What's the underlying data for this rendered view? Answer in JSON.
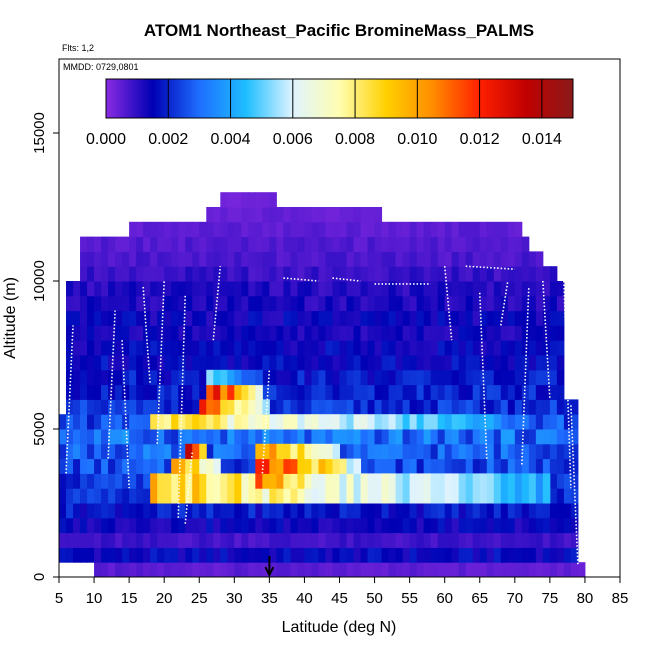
{
  "chart_data": {
    "type": "heatmap",
    "title": "ATOM1 Northeast_Pacific BromineMass_PALMS",
    "flights_label": "Flts: 1,2",
    "dates_label": "MMDD: 0729,0801",
    "xlabel": "Latitude (deg N)",
    "ylabel": "Altitude (m)",
    "xlim": [
      5,
      85
    ],
    "ylim": [
      0,
      17500
    ],
    "x_ticks": [
      "5",
      "10",
      "15",
      "20",
      "25",
      "30",
      "35",
      "40",
      "45",
      "50",
      "55",
      "60",
      "65",
      "70",
      "75",
      "80",
      "85"
    ],
    "y_ticks": [
      "0",
      "5000",
      "10000",
      "15000"
    ],
    "colorbar": {
      "min": 0.0,
      "max": 0.015,
      "tick_values": [
        0.0,
        0.002,
        0.004,
        0.006,
        0.008,
        0.01,
        0.012,
        0.014
      ],
      "tick_labels": [
        "0.000",
        "0.002",
        "0.004",
        "0.006",
        "0.008",
        "0.010",
        "0.012",
        "0.014"
      ],
      "colors": [
        "#8a2be2",
        "#0000b4",
        "#1e6eff",
        "#1ebeff",
        "#dff3ff",
        "#fffeb0",
        "#ffd000",
        "#ff8c00",
        "#ff2000",
        "#c00000",
        "#8b1a1a"
      ]
    },
    "marker_latitude": 35,
    "colors": {
      "frame": "#000000",
      "track": "#ffffff",
      "marker": "#000000"
    },
    "altitude_bands": [
      {
        "alt": [
          0,
          500
        ],
        "lat": [
          10,
          80
        ],
        "value": 0.0005
      },
      {
        "alt": [
          500,
          1000
        ],
        "lat": [
          5,
          79
        ],
        "value": 0.0015
      },
      {
        "alt": [
          1000,
          1500
        ],
        "lat": [
          5,
          79
        ],
        "value": 0.0008
      },
      {
        "alt": [
          1500,
          2000
        ],
        "lat": [
          5,
          79
        ],
        "value": 0.0014
      },
      {
        "alt": [
          2000,
          2500
        ],
        "lat": [
          5,
          79
        ],
        "value": 0.0018
      },
      {
        "alt": [
          2500,
          3000
        ],
        "lat": [
          5,
          79
        ],
        "value": 0.002
      },
      {
        "alt": [
          3000,
          3500
        ],
        "lat": [
          5,
          79
        ],
        "value": 0.0022
      },
      {
        "alt": [
          3500,
          4000
        ],
        "lat": [
          5,
          79
        ],
        "value": 0.0025
      },
      {
        "alt": [
          4000,
          4500
        ],
        "lat": [
          5,
          79
        ],
        "value": 0.0028
      },
      {
        "alt": [
          4500,
          5000
        ],
        "lat": [
          5,
          79
        ],
        "value": 0.003
      },
      {
        "alt": [
          5000,
          5500
        ],
        "lat": [
          5,
          79
        ],
        "value": 0.0025
      },
      {
        "alt": [
          5500,
          6000
        ],
        "lat": [
          6,
          79
        ],
        "value": 0.0021
      },
      {
        "alt": [
          6000,
          6500
        ],
        "lat": [
          6,
          77
        ],
        "value": 0.0019
      },
      {
        "alt": [
          6500,
          7000
        ],
        "lat": [
          6,
          77
        ],
        "value": 0.0018
      },
      {
        "alt": [
          7000,
          7500
        ],
        "lat": [
          6,
          77
        ],
        "value": 0.0016
      },
      {
        "alt": [
          7500,
          8000
        ],
        "lat": [
          6,
          77
        ],
        "value": 0.0015
      },
      {
        "alt": [
          8000,
          8500
        ],
        "lat": [
          6,
          77
        ],
        "value": 0.0013
      },
      {
        "alt": [
          8500,
          9000
        ],
        "lat": [
          6,
          77
        ],
        "value": 0.0014
      },
      {
        "alt": [
          9000,
          9500
        ],
        "lat": [
          6,
          77
        ],
        "value": 0.0012
      },
      {
        "alt": [
          9500,
          10000
        ],
        "lat": [
          6,
          77
        ],
        "value": 0.0011
      },
      {
        "alt": [
          10000,
          10500
        ],
        "lat": [
          8,
          76
        ],
        "value": 0.0009
      },
      {
        "alt": [
          10500,
          11000
        ],
        "lat": [
          8,
          74
        ],
        "value": 0.0007
      },
      {
        "alt": [
          11000,
          11500
        ],
        "lat": [
          8,
          72
        ],
        "value": 0.0006
      },
      {
        "alt": [
          11500,
          12000
        ],
        "lat": [
          15,
          71
        ],
        "value": 0.0005
      },
      {
        "alt": [
          12000,
          12500
        ],
        "lat": [
          26,
          51
        ],
        "value": 0.0004
      },
      {
        "alt": [
          12500,
          13000
        ],
        "lat": [
          28,
          36
        ],
        "value": 0.0003
      }
    ],
    "high_cells": [
      {
        "alt": [
          2500,
          3500
        ],
        "lat": [
          18,
          75
        ],
        "value": 0.009
      },
      {
        "alt": [
          3000,
          3500
        ],
        "lat": [
          33,
          42
        ],
        "value": 0.012
      },
      {
        "alt": [
          3500,
          4000
        ],
        "lat": [
          21,
          28
        ],
        "value": 0.011
      },
      {
        "alt": [
          3500,
          4000
        ],
        "lat": [
          33,
          48
        ],
        "value": 0.0125
      },
      {
        "alt": [
          4000,
          4500
        ],
        "lat": [
          23,
          26
        ],
        "value": 0.0145
      },
      {
        "alt": [
          4000,
          4500
        ],
        "lat": [
          33,
          45
        ],
        "value": 0.011
      },
      {
        "alt": [
          5000,
          5500
        ],
        "lat": [
          18,
          68
        ],
        "value": 0.0085
      },
      {
        "alt": [
          5500,
          6000
        ],
        "lat": [
          25,
          35
        ],
        "value": 0.0115
      },
      {
        "alt": [
          6000,
          6500
        ],
        "lat": [
          26,
          34
        ],
        "value": 0.013
      },
      {
        "alt": [
          6500,
          7000
        ],
        "lat": [
          26,
          34
        ],
        "value": 0.005
      }
    ]
  }
}
